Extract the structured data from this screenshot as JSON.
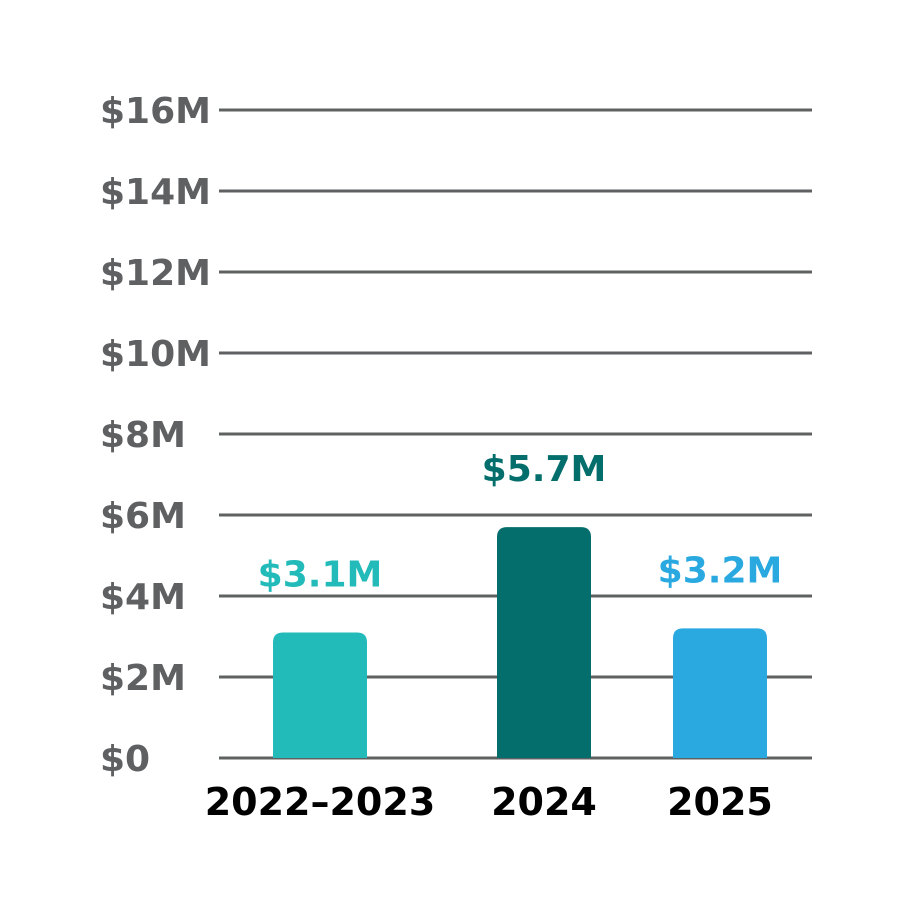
{
  "chart_data": {
    "type": "bar",
    "title": "",
    "xlabel": "",
    "ylabel": "",
    "categories": [
      "2022–2023",
      "2024",
      "2025"
    ],
    "values": [
      3.1,
      5.7,
      3.2
    ],
    "data_labels": [
      "$3.1M",
      "$5.7M",
      "$3.2M"
    ],
    "colors": [
      "#22bbb9",
      "#036e6b",
      "#29a9e0"
    ],
    "ylim": [
      0,
      16
    ],
    "yticks": [
      0,
      2,
      4,
      6,
      8,
      10,
      12,
      14,
      16
    ],
    "ytick_labels": [
      "$0",
      "$2M",
      "$4M",
      "$6M",
      "$8M",
      "$10M",
      "$12M",
      "$14M",
      "$16M"
    ],
    "grid": true,
    "grid_color": "#5f6062",
    "legend": "none"
  }
}
